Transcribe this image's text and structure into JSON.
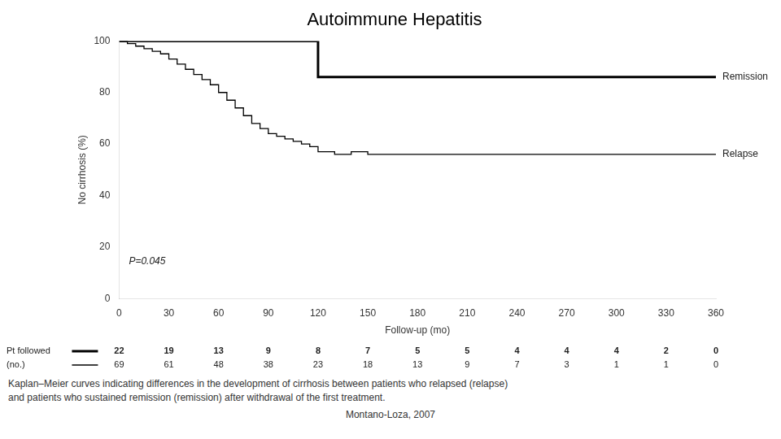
{
  "chart_data": {
    "type": "step",
    "title": "Autoimmune Hepatitis",
    "ylabel": "No cirrhosis (%)",
    "xlabel": "Follow-up (mo)",
    "series": [
      {
        "name": "Remission",
        "color": "#000000",
        "x": [
          0,
          120,
          120,
          150,
          150,
          360
        ],
        "values": [
          100,
          100,
          86,
          86,
          86,
          86
        ]
      },
      {
        "name": "Relapse",
        "color": "#000000",
        "x": [
          0,
          5,
          5,
          10,
          10,
          15,
          15,
          20,
          20,
          25,
          25,
          30,
          30,
          35,
          35,
          40,
          40,
          45,
          45,
          50,
          50,
          55,
          55,
          60,
          60,
          65,
          65,
          70,
          70,
          75,
          75,
          80,
          80,
          85,
          85,
          90,
          90,
          95,
          95,
          100,
          100,
          105,
          105,
          110,
          110,
          115,
          115,
          120,
          120,
          130,
          130,
          140,
          140,
          150,
          150,
          180,
          180,
          360
        ],
        "values": [
          100,
          100,
          99,
          99,
          98,
          98,
          97,
          97,
          96,
          96,
          95,
          95,
          93,
          93,
          91,
          91,
          89,
          89,
          87,
          87,
          85,
          85,
          83,
          83,
          80,
          80,
          77,
          77,
          74,
          74,
          71,
          71,
          68,
          68,
          66,
          66,
          64,
          64,
          63,
          63,
          62,
          62,
          61,
          61,
          60,
          60,
          59,
          59,
          57,
          57,
          56,
          56,
          57,
          57,
          56,
          56,
          56,
          56
        ]
      }
    ],
    "xlim": [
      0,
      360
    ],
    "ylim": [
      0,
      100
    ],
    "xticks": [
      0,
      30,
      60,
      90,
      120,
      150,
      180,
      210,
      240,
      270,
      300,
      330,
      360
    ],
    "yticks": [
      0,
      20,
      40,
      60,
      80,
      100
    ],
    "grid": false,
    "annotations": [
      "P=0.045"
    ],
    "number_at_risk": {
      "label": "Pt followed\n(no.)",
      "values": [
        [
          22,
          19,
          13,
          9,
          8,
          7,
          5,
          5,
          4,
          4,
          4,
          2,
          0
        ],
        [
          69,
          61,
          48,
          38,
          23,
          18,
          13,
          9,
          7,
          3,
          1,
          1,
          0
        ]
      ]
    },
    "caption": [
      "Kaplan–Meier curves indicating differences in the development of cirrhosis between patients who relapsed (relapse)",
      "and patients who sustained remission (remission) after withdrawal of the first treatment."
    ],
    "source": "Montano-Loza, 2007"
  }
}
